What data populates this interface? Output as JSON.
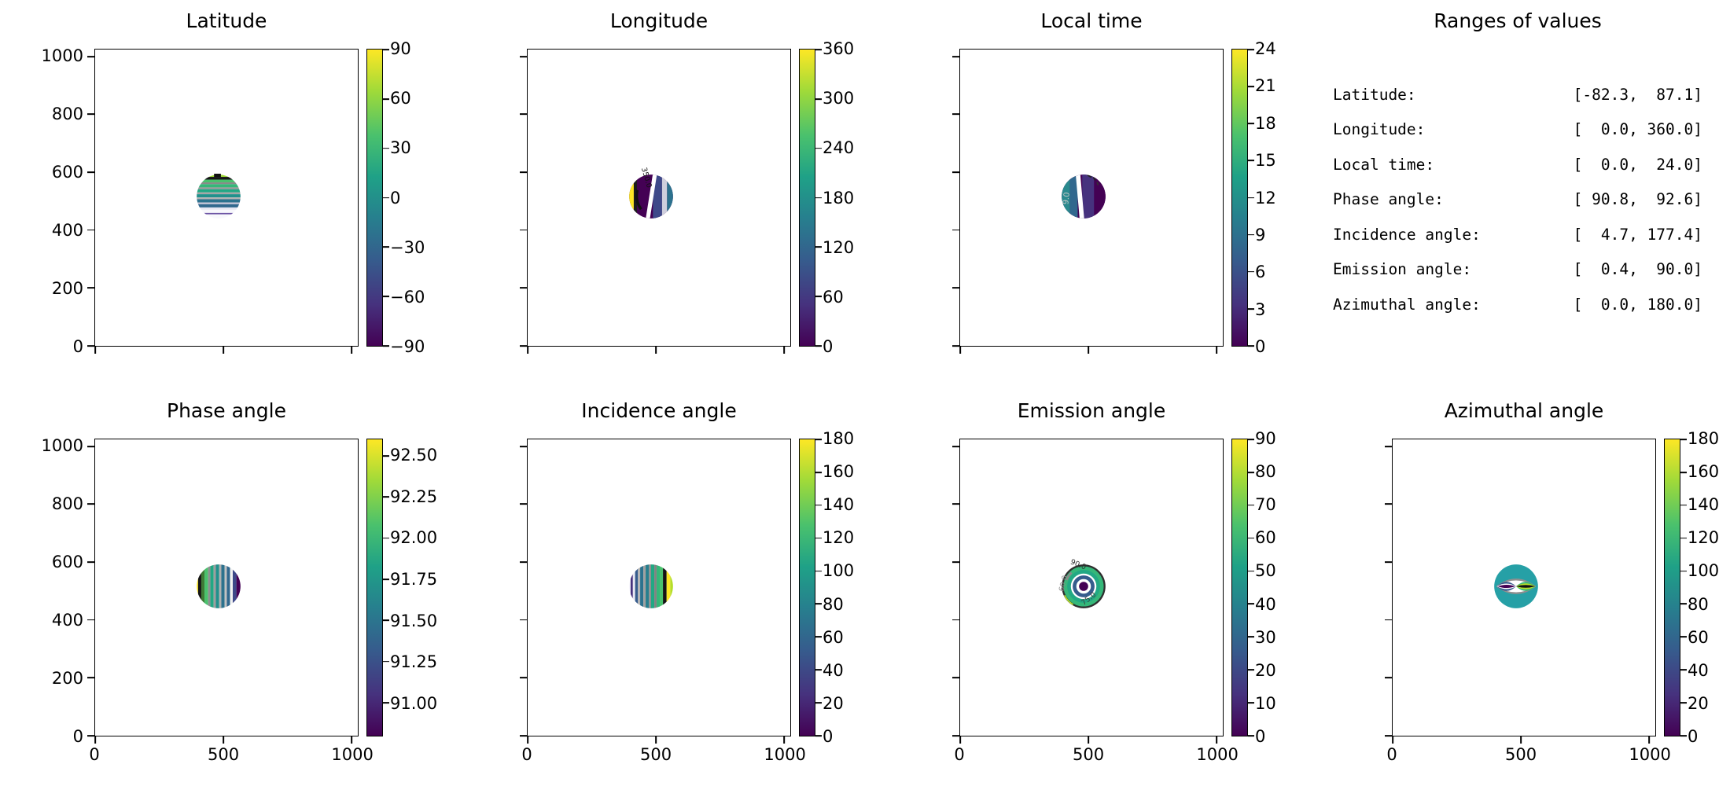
{
  "figure": {
    "background": "#ffffff"
  },
  "colors": {
    "viridis_stops": [
      "#440154",
      "#46327e",
      "#365c8d",
      "#277f8e",
      "#1fa187",
      "#4ac16d",
      "#a0da39",
      "#fde725"
    ],
    "spine": "#000000"
  },
  "panels": {
    "latitude": {
      "title": "Latitude",
      "axes": {
        "xmax": 1024,
        "ymax": 1024,
        "xticks": [
          0,
          500,
          1000
        ],
        "yticks": [
          0,
          200,
          400,
          600,
          800,
          1000
        ],
        "xtick_labels": [
          "0",
          "500",
          "1000"
        ],
        "ytick_labels": [
          "0",
          "200",
          "400",
          "600",
          "800",
          "1000"
        ],
        "x_labels": false,
        "y_labels": true
      },
      "cbar": {
        "vmin": -90,
        "vmax": 90,
        "tick_labels": [
          "90",
          "60",
          "30",
          "0",
          "−30",
          "−60",
          "−90"
        ],
        "tick_values": [
          90,
          60,
          30,
          0,
          -30,
          -60,
          -90
        ]
      }
    },
    "longitude": {
      "title": "Longitude",
      "contour_label": "350.0",
      "axes": {
        "xmax": 1024,
        "ymax": 1024,
        "xticks": [
          0,
          500,
          1000
        ],
        "yticks": [
          0,
          200,
          400,
          600,
          800,
          1000
        ],
        "xtick_labels": [
          "0",
          "500",
          "1000"
        ],
        "ytick_labels": [
          "0",
          "200",
          "400",
          "600",
          "800",
          "1000"
        ],
        "x_labels": false,
        "y_labels": false
      },
      "cbar": {
        "vmin": 0,
        "vmax": 360,
        "tick_labels": [
          "360",
          "300",
          "240",
          "180",
          "120",
          "60",
          "0"
        ],
        "tick_values": [
          360,
          300,
          240,
          180,
          120,
          60,
          0
        ]
      }
    },
    "local_time": {
      "title": "Local time",
      "contour_label": "9.0",
      "axes": {
        "xmax": 1024,
        "ymax": 1024,
        "xticks": [
          0,
          500,
          1000
        ],
        "yticks": [
          0,
          200,
          400,
          600,
          800,
          1000
        ],
        "xtick_labels": [
          "0",
          "500",
          "1000"
        ],
        "ytick_labels": [
          "0",
          "200",
          "400",
          "600",
          "800",
          "1000"
        ],
        "x_labels": false,
        "y_labels": false
      },
      "cbar": {
        "vmin": 0,
        "vmax": 24,
        "tick_labels": [
          "24",
          "21",
          "18",
          "15",
          "12",
          "9",
          "6",
          "3",
          "0"
        ],
        "tick_values": [
          24,
          21,
          18,
          15,
          12,
          9,
          6,
          3,
          0
        ]
      }
    },
    "ranges": {
      "title": "Ranges of values",
      "rows": [
        {
          "label": "Latitude:",
          "value": "[-82.3,  87.1]"
        },
        {
          "label": "Longitude:",
          "value": "[  0.0, 360.0]"
        },
        {
          "label": "Local time:",
          "value": "[  0.0,  24.0]"
        },
        {
          "label": "Phase angle:",
          "value": "[ 90.8,  92.6]"
        },
        {
          "label": "Incidence angle:",
          "value": "[  4.7, 177.4]"
        },
        {
          "label": "Emission angle:",
          "value": "[  0.4,  90.0]"
        },
        {
          "label": "Azimuthal angle:",
          "value": "[  0.0, 180.0]"
        }
      ]
    },
    "phase": {
      "title": "Phase angle",
      "axes": {
        "xmax": 1024,
        "ymax": 1024,
        "xticks": [
          0,
          500,
          1000
        ],
        "yticks": [
          0,
          200,
          400,
          600,
          800,
          1000
        ],
        "xtick_labels": [
          "0",
          "500",
          "1000"
        ],
        "ytick_labels": [
          "0",
          "200",
          "400",
          "600",
          "800",
          "1000"
        ],
        "x_labels": true,
        "y_labels": true
      },
      "cbar": {
        "vmin": 90.8,
        "vmax": 92.6,
        "tick_labels": [
          "92.50",
          "92.25",
          "92.00",
          "91.75",
          "91.50",
          "91.25",
          "91.00"
        ],
        "tick_values": [
          92.5,
          92.25,
          92.0,
          91.75,
          91.5,
          91.25,
          91.0
        ]
      }
    },
    "incidence": {
      "title": "Incidence angle",
      "axes": {
        "xmax": 1024,
        "ymax": 1024,
        "xticks": [
          0,
          500,
          1000
        ],
        "yticks": [
          0,
          200,
          400,
          600,
          800,
          1000
        ],
        "xtick_labels": [
          "0",
          "500",
          "1000"
        ],
        "ytick_labels": [
          "0",
          "200",
          "400",
          "600",
          "800",
          "1000"
        ],
        "x_labels": true,
        "y_labels": false
      },
      "cbar": {
        "vmin": 0,
        "vmax": 180,
        "tick_labels": [
          "180",
          "160",
          "140",
          "120",
          "100",
          "80",
          "60",
          "40",
          "20",
          "0"
        ],
        "tick_values": [
          180,
          160,
          140,
          120,
          100,
          80,
          60,
          40,
          20,
          0
        ]
      }
    },
    "emission": {
      "title": "Emission angle",
      "contour_labels": [
        "60.0",
        "75.0",
        "90.0"
      ],
      "axes": {
        "xmax": 1024,
        "ymax": 1024,
        "xticks": [
          0,
          500,
          1000
        ],
        "yticks": [
          0,
          200,
          400,
          600,
          800,
          1000
        ],
        "xtick_labels": [
          "0",
          "500",
          "1000"
        ],
        "ytick_labels": [
          "0",
          "200",
          "400",
          "600",
          "800",
          "1000"
        ],
        "x_labels": true,
        "y_labels": false
      },
      "cbar": {
        "vmin": 0,
        "vmax": 90,
        "tick_labels": [
          "90",
          "80",
          "70",
          "60",
          "50",
          "40",
          "30",
          "20",
          "10",
          "0"
        ],
        "tick_values": [
          90,
          80,
          70,
          60,
          50,
          40,
          30,
          20,
          10,
          0
        ]
      }
    },
    "azimuthal": {
      "title": "Azimuthal angle",
      "axes": {
        "xmax": 1024,
        "ymax": 1024,
        "xticks": [
          0,
          500,
          1000
        ],
        "yticks": [
          0,
          200,
          400,
          600,
          800,
          1000
        ],
        "xtick_labels": [
          "0",
          "500",
          "1000"
        ],
        "ytick_labels": [
          "0",
          "200",
          "400",
          "600",
          "800",
          "1000"
        ],
        "x_labels": true,
        "y_labels": false
      },
      "cbar": {
        "vmin": 0,
        "vmax": 180,
        "tick_labels": [
          "180",
          "160",
          "140",
          "120",
          "100",
          "80",
          "60",
          "40",
          "20",
          "0"
        ],
        "tick_values": [
          180,
          160,
          140,
          120,
          100,
          80,
          60,
          40,
          20,
          0
        ]
      }
    }
  },
  "chart_data": [
    {
      "type": "heatmap",
      "title": "Latitude",
      "colormap": "viridis",
      "data_range": [
        -82.3,
        87.1
      ],
      "colorbar_range": [
        -90,
        90
      ],
      "colorbar_ticks": [
        90,
        60,
        30,
        0,
        -30,
        -60,
        -90
      ],
      "x_range": [
        0,
        1024
      ],
      "y_range": [
        0,
        1024
      ],
      "x_ticks": [
        0,
        500,
        1000
      ],
      "y_ticks": [
        0,
        200,
        400,
        600,
        800,
        1000
      ],
      "disk_center": [
        470,
        515
      ],
      "disk_radius": 85,
      "contour_labels": [],
      "pattern": "horizontal latitude bands, green top to blue/white bottom"
    },
    {
      "type": "heatmap",
      "title": "Longitude",
      "colormap": "viridis",
      "data_range": [
        0.0,
        360.0
      ],
      "colorbar_range": [
        0,
        360
      ],
      "colorbar_ticks": [
        360,
        300,
        240,
        180,
        120,
        60,
        0
      ],
      "x_range": [
        0,
        1024
      ],
      "y_range": [
        0,
        1024
      ],
      "x_ticks": [
        0,
        500,
        1000
      ],
      "y_ticks": [
        0,
        200,
        400,
        600,
        800,
        1000
      ],
      "disk_center": [
        470,
        515
      ],
      "disk_radius": 85,
      "contour_labels": [
        "350.0"
      ],
      "pattern": "vertical meridian bands, yellow west limb to dark purple center"
    },
    {
      "type": "heatmap",
      "title": "Local time",
      "colormap": "viridis",
      "data_range": [
        0.0,
        24.0
      ],
      "colorbar_range": [
        0,
        24
      ],
      "colorbar_ticks": [
        24,
        21,
        18,
        15,
        12,
        9,
        6,
        3,
        0
      ],
      "x_range": [
        0,
        1024
      ],
      "y_range": [
        0,
        1024
      ],
      "x_ticks": [
        0,
        500,
        1000
      ],
      "y_ticks": [
        0,
        200,
        400,
        600,
        800,
        1000
      ],
      "disk_center": [
        470,
        515
      ],
      "disk_radius": 85,
      "contour_labels": [
        "9.0"
      ],
      "pattern": "teal left half, purple right half, white contour divider"
    },
    {
      "type": "heatmap",
      "title": "Phase angle",
      "colormap": "viridis",
      "data_range": [
        90.8,
        92.6
      ],
      "colorbar_range": [
        90.8,
        92.6
      ],
      "colorbar_ticks": [
        92.5,
        92.25,
        92.0,
        91.75,
        91.5,
        91.25,
        91.0
      ],
      "x_range": [
        0,
        1024
      ],
      "y_range": [
        0,
        1024
      ],
      "x_ticks": [
        0,
        500,
        1000
      ],
      "y_ticks": [
        0,
        200,
        400,
        600,
        800,
        1000
      ],
      "disk_center": [
        470,
        515
      ],
      "disk_radius": 85,
      "contour_labels": [],
      "pattern": "vertical bands, yellow/black left to purple right"
    },
    {
      "type": "heatmap",
      "title": "Incidence angle",
      "colormap": "viridis",
      "data_range": [
        4.7,
        177.4
      ],
      "colorbar_range": [
        0,
        180
      ],
      "colorbar_ticks": [
        180,
        160,
        140,
        120,
        100,
        80,
        60,
        40,
        20,
        0
      ],
      "x_range": [
        0,
        1024
      ],
      "y_range": [
        0,
        1024
      ],
      "x_ticks": [
        0,
        500,
        1000
      ],
      "y_ticks": [
        0,
        200,
        400,
        600,
        800,
        1000
      ],
      "disk_center": [
        470,
        515
      ],
      "disk_radius": 85,
      "contour_labels": [],
      "pattern": "vertical bands, white/purple left to green/black/yellow right"
    },
    {
      "type": "heatmap",
      "title": "Emission angle",
      "colormap": "viridis",
      "data_range": [
        0.4,
        90.0
      ],
      "colorbar_range": [
        0,
        90
      ],
      "colorbar_ticks": [
        90,
        80,
        70,
        60,
        50,
        40,
        30,
        20,
        10,
        0
      ],
      "x_range": [
        0,
        1024
      ],
      "y_range": [
        0,
        1024
      ],
      "x_ticks": [
        0,
        500,
        1000
      ],
      "y_ticks": [
        0,
        200,
        400,
        600,
        800,
        1000
      ],
      "disk_center": [
        470,
        515
      ],
      "disk_radius": 85,
      "contour_labels": [
        "60.0",
        "75.0",
        "90.0"
      ],
      "pattern": "concentric rings, purple center to dark limb"
    },
    {
      "type": "heatmap",
      "title": "Azimuthal angle",
      "colormap": "viridis",
      "data_range": [
        0.0,
        180.0
      ],
      "colorbar_range": [
        0,
        180
      ],
      "colorbar_ticks": [
        180,
        160,
        140,
        120,
        100,
        80,
        60,
        40,
        20,
        0
      ],
      "x_range": [
        0,
        1024
      ],
      "y_range": [
        0,
        1024
      ],
      "x_ticks": [
        0,
        500,
        1000
      ],
      "y_ticks": [
        0,
        200,
        400,
        600,
        800,
        1000
      ],
      "disk_center": [
        470,
        515
      ],
      "disk_radius": 85,
      "contour_labels": [],
      "pattern": "lune bands converging at east/west points, purple left lens, black right lens"
    },
    {
      "type": "table",
      "title": "Ranges of values",
      "rows": [
        [
          "Latitude",
          -82.3,
          87.1
        ],
        [
          "Longitude",
          0.0,
          360.0
        ],
        [
          "Local time",
          0.0,
          24.0
        ],
        [
          "Phase angle",
          90.8,
          92.6
        ],
        [
          "Incidence angle",
          4.7,
          177.4
        ],
        [
          "Emission angle",
          0.4,
          90.0
        ],
        [
          "Azimuthal angle",
          0.0,
          180.0
        ]
      ]
    }
  ]
}
